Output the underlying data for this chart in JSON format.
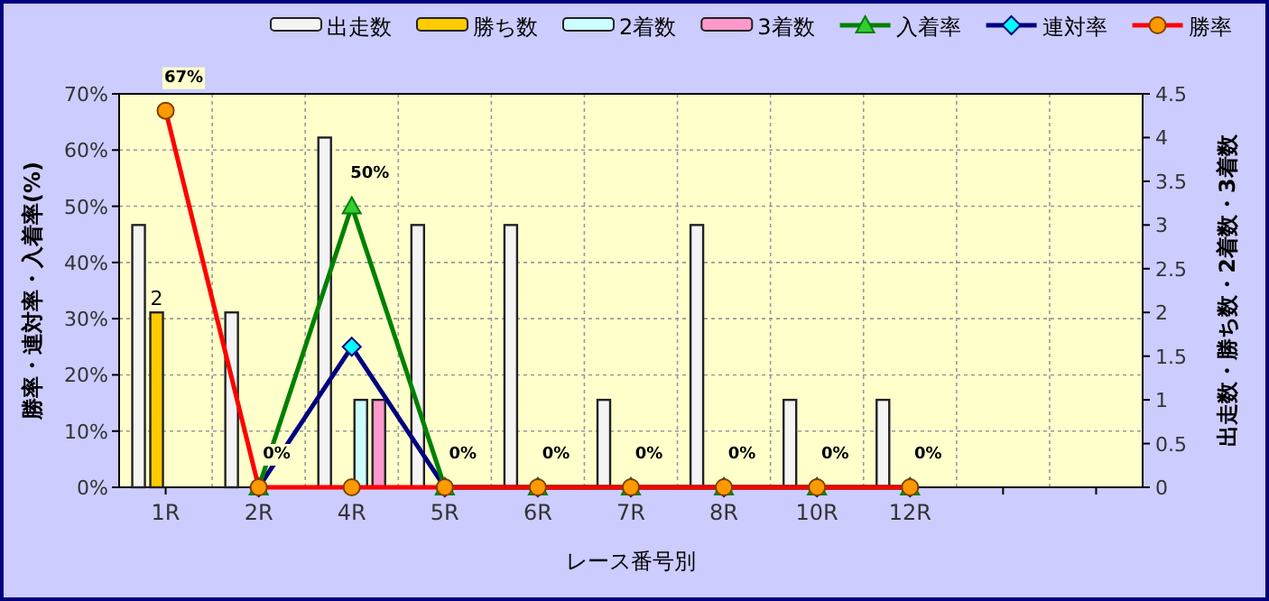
{
  "chart_data": {
    "type": "bar",
    "xlabel": "レース番号別",
    "ylabel": "勝率・連対率・入着率(%)",
    "y2label": "出走数・勝ち数・2着数・3着数",
    "categories": [
      "1R",
      "2R",
      "4R",
      "5R",
      "6R",
      "7R",
      "8R",
      "10R",
      "12R",
      null,
      null
    ],
    "series": [
      {
        "name": "出走数",
        "axis": "y2",
        "color": "#f4f4f4",
        "values": [
          3,
          2,
          4,
          3,
          3,
          1,
          3,
          1,
          1,
          null,
          null
        ]
      },
      {
        "name": "勝ち数",
        "axis": "y2",
        "color": "#ffcc00",
        "values": [
          2,
          null,
          null,
          null,
          null,
          null,
          null,
          null,
          null,
          null,
          null
        ],
        "value_labels": [
          "2",
          null,
          null,
          null,
          null,
          null,
          null,
          null,
          null,
          null,
          null
        ]
      },
      {
        "name": "2着数",
        "axis": "y2",
        "color": "#ccffff",
        "values": [
          null,
          null,
          1,
          null,
          null,
          null,
          null,
          null,
          null,
          null,
          null
        ]
      },
      {
        "name": "3着数",
        "axis": "y2",
        "color": "#ff99cc",
        "values": [
          null,
          null,
          1,
          null,
          null,
          null,
          null,
          null,
          null,
          null,
          null
        ]
      },
      {
        "name": "入着率",
        "type": "line",
        "color": "#008000",
        "marker": "triangle",
        "values": [
          null,
          0,
          50,
          0,
          0,
          0,
          0,
          0,
          0,
          null,
          null
        ],
        "value_labels": [
          null,
          "0%",
          "50%",
          "0%",
          "0%",
          "0%",
          "0%",
          "0%",
          "0%",
          null,
          null
        ]
      },
      {
        "name": "連対率",
        "type": "line",
        "color": "#000080",
        "marker": "diamond",
        "values": [
          null,
          0,
          25,
          0,
          0,
          0,
          0,
          0,
          0,
          null,
          null
        ]
      },
      {
        "name": "勝率",
        "type": "line",
        "color": "#ff0000",
        "marker": "circle",
        "values": [
          67,
          0,
          0,
          0,
          0,
          0,
          0,
          0,
          0,
          null,
          null
        ],
        "value_labels": [
          "67%",
          null,
          null,
          null,
          null,
          null,
          null,
          null,
          null,
          null,
          null
        ]
      }
    ],
    "ylim": [
      0,
      70
    ],
    "yticks": [
      {
        "value": 0,
        "label": "0%"
      },
      {
        "value": 10,
        "label": "10%"
      },
      {
        "value": 20,
        "label": "20%"
      },
      {
        "value": 30,
        "label": "30%"
      },
      {
        "value": 40,
        "label": "40%"
      },
      {
        "value": 50,
        "label": "50%"
      },
      {
        "value": 60,
        "label": "60%"
      },
      {
        "value": 70,
        "label": "70%"
      }
    ],
    "y2lim": [
      0,
      4.5
    ],
    "y2ticks": [
      0,
      0.5,
      1,
      1.5,
      2,
      2.5,
      3,
      3.5,
      4,
      4.5
    ],
    "grid": true,
    "legend": "top"
  }
}
